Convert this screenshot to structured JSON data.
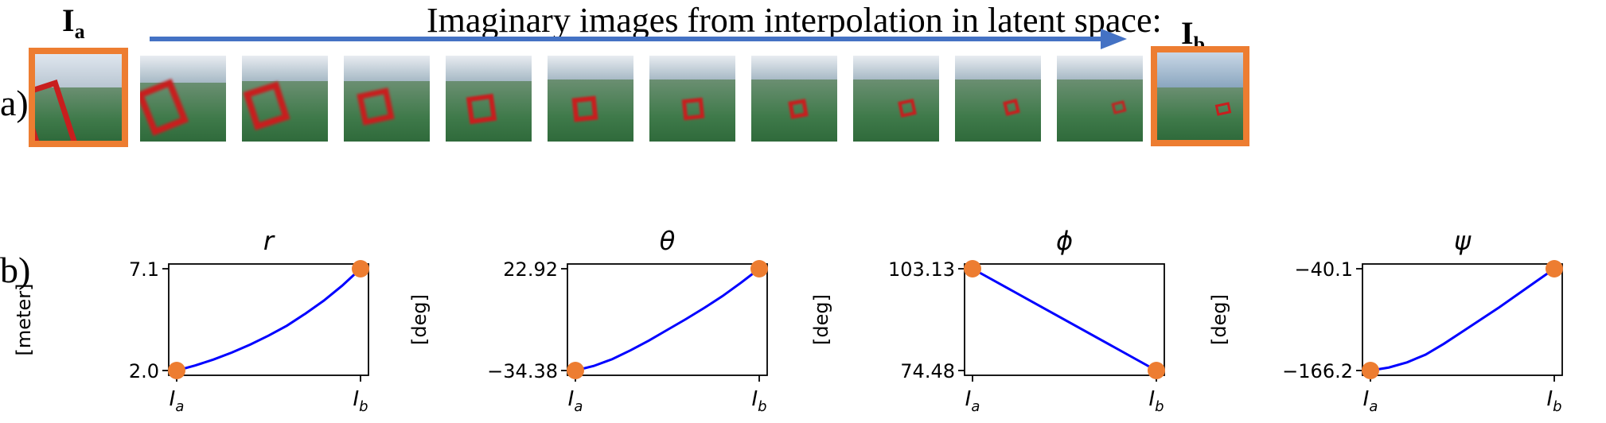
{
  "row_labels": {
    "a": "a)",
    "b": "b)"
  },
  "heading": "Imaginary images from interpolation in latent space:",
  "endpoint_labels": {
    "a_main": "I",
    "a_sub": "a",
    "b_main": "I",
    "b_sub": "b"
  },
  "colors": {
    "frame": "#ed7d31",
    "arrow": "#4472c4",
    "line": "#0000ff",
    "marker": "#ed7d31"
  },
  "chart_data": [
    {
      "type": "line",
      "title": "r",
      "ylabel": "[meter]",
      "xticks": [
        "I_a",
        "I_b"
      ],
      "yticks": [
        "2.0",
        "7.1"
      ],
      "ylim": [
        2.0,
        7.1
      ],
      "x": [
        0,
        0.1,
        0.2,
        0.3,
        0.4,
        0.5,
        0.6,
        0.7,
        0.8,
        0.9,
        1.0
      ],
      "y": [
        2.0,
        2.25,
        2.55,
        2.9,
        3.3,
        3.75,
        4.25,
        4.85,
        5.5,
        6.25,
        7.1
      ],
      "endpoints": [
        [
          0,
          2.0
        ],
        [
          1,
          7.1
        ]
      ]
    },
    {
      "type": "line",
      "title": "θ",
      "ylabel": "[deg]",
      "xticks": [
        "I_a",
        "I_b"
      ],
      "yticks": [
        "−34.38",
        "22.92"
      ],
      "ylim": [
        -34.38,
        22.92
      ],
      "x": [
        0,
        0.1,
        0.2,
        0.3,
        0.4,
        0.5,
        0.6,
        0.7,
        0.8,
        0.9,
        1.0
      ],
      "y": [
        -34.38,
        -31.8,
        -28.0,
        -23.0,
        -17.5,
        -11.5,
        -5.5,
        0.8,
        7.5,
        15.0,
        22.92
      ],
      "endpoints": [
        [
          0,
          -34.38
        ],
        [
          1,
          22.92
        ]
      ]
    },
    {
      "type": "line",
      "title": "ϕ",
      "ylabel": "[deg]",
      "xticks": [
        "I_a",
        "I_b"
      ],
      "yticks": [
        "74.48",
        "103.13"
      ],
      "ylim": [
        74.48,
        103.13
      ],
      "x": [
        0,
        1.0
      ],
      "y": [
        103.13,
        74.48
      ],
      "endpoints": [
        [
          0,
          103.13
        ],
        [
          1,
          74.48
        ]
      ]
    },
    {
      "type": "line",
      "title": "ψ",
      "ylabel": "[deg]",
      "xticks": [
        "I_a",
        "I_b"
      ],
      "yticks": [
        "−166.2",
        "−40.1"
      ],
      "ylim": [
        -166.2,
        -40.1
      ],
      "x": [
        0,
        0.1,
        0.2,
        0.3,
        0.4,
        0.5,
        0.6,
        0.7,
        0.8,
        0.9,
        1.0
      ],
      "y": [
        -166.2,
        -162.5,
        -156.0,
        -146.5,
        -133.0,
        -118.0,
        -103.0,
        -88.0,
        -72.0,
        -56.0,
        -40.1
      ],
      "endpoints": [
        [
          0,
          -166.2
        ],
        [
          1,
          -40.1
        ]
      ]
    }
  ]
}
